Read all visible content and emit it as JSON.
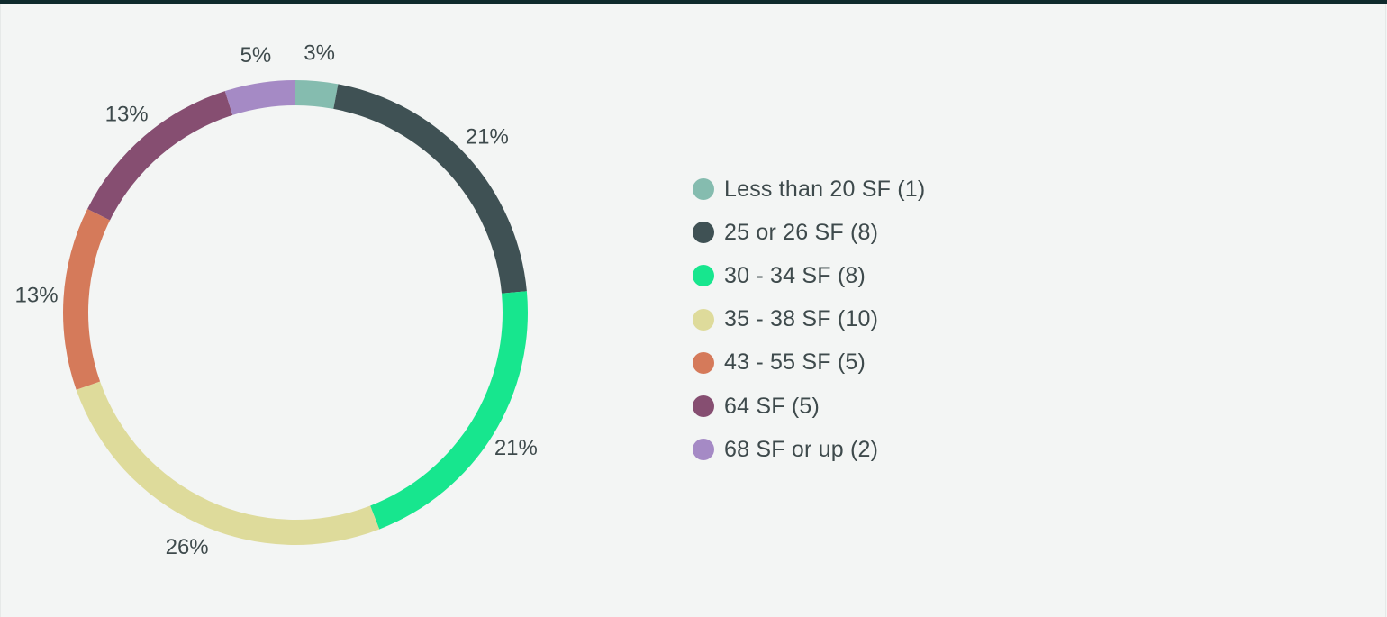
{
  "chart_data": {
    "type": "pie",
    "variant": "donut",
    "title": "",
    "legend_position": "right",
    "slices": [
      {
        "label": "Less than 20 SF (1)",
        "value": 3,
        "percent_label": "3%",
        "color": "#85bcaf"
      },
      {
        "label": "25 or 26 SF (8)",
        "value": 21,
        "percent_label": "21%",
        "color": "#3f5154"
      },
      {
        "label": "30 - 34 SF (8)",
        "value": 21,
        "percent_label": "21%",
        "color": "#17e68e"
      },
      {
        "label": "35 - 38 SF (10)",
        "value": 26,
        "percent_label": "26%",
        "color": "#dedb9b"
      },
      {
        "label": "43 - 55 SF (5)",
        "value": 13,
        "percent_label": "13%",
        "color": "#d57a5a"
      },
      {
        "label": "64 SF (5)",
        "value": 13,
        "percent_label": "13%",
        "color": "#864e71"
      },
      {
        "label": "68 SF or up (2)",
        "value": 5,
        "percent_label": "5%",
        "color": "#a58ac5"
      }
    ]
  }
}
